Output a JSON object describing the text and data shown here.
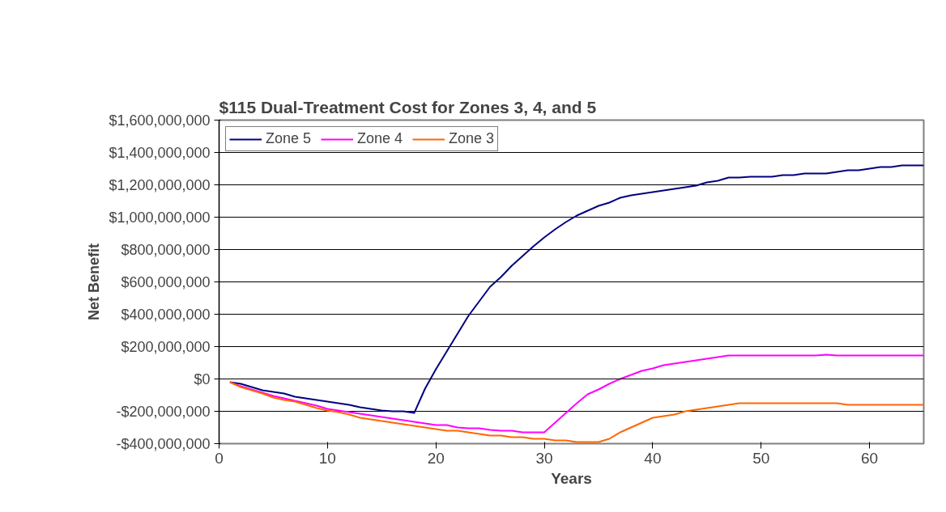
{
  "chart_data": {
    "type": "line",
    "title": "$115 Dual-Treatment Cost for Zones 3, 4, and 5",
    "xlabel": "Years",
    "ylabel": "Net Benefit",
    "x": [
      1,
      2,
      3,
      4,
      5,
      6,
      7,
      8,
      9,
      10,
      11,
      12,
      13,
      14,
      15,
      16,
      17,
      18,
      19,
      20,
      21,
      22,
      23,
      24,
      25,
      26,
      27,
      28,
      29,
      30,
      31,
      32,
      33,
      34,
      35,
      36,
      37,
      38,
      39,
      40,
      41,
      42,
      43,
      44,
      45,
      46,
      47,
      48,
      49,
      50,
      51,
      52,
      53,
      54,
      55,
      56,
      57,
      58,
      59,
      60,
      61,
      62,
      63,
      64,
      65
    ],
    "series": [
      {
        "name": "Zone 5",
        "color": "#000080",
        "values": [
          -20000000,
          -30000000,
          -50000000,
          -70000000,
          -80000000,
          -90000000,
          -110000000,
          -120000000,
          -130000000,
          -140000000,
          -150000000,
          -160000000,
          -175000000,
          -185000000,
          -195000000,
          -200000000,
          -200000000,
          -210000000,
          -60000000,
          60000000,
          170000000,
          280000000,
          390000000,
          480000000,
          570000000,
          630000000,
          700000000,
          760000000,
          820000000,
          875000000,
          925000000,
          970000000,
          1010000000,
          1040000000,
          1070000000,
          1090000000,
          1120000000,
          1135000000,
          1145000000,
          1155000000,
          1165000000,
          1175000000,
          1185000000,
          1195000000,
          1215000000,
          1225000000,
          1245000000,
          1245000000,
          1250000000,
          1250000000,
          1250000000,
          1260000000,
          1260000000,
          1270000000,
          1270000000,
          1270000000,
          1280000000,
          1290000000,
          1290000000,
          1300000000,
          1310000000,
          1310000000,
          1320000000,
          1320000000,
          1320000000
        ]
      },
      {
        "name": "Zone 4",
        "color": "#ff00ff",
        "values": [
          -20000000,
          -45000000,
          -65000000,
          -85000000,
          -105000000,
          -120000000,
          -135000000,
          -150000000,
          -165000000,
          -185000000,
          -195000000,
          -205000000,
          -215000000,
          -225000000,
          -235000000,
          -245000000,
          -255000000,
          -265000000,
          -275000000,
          -285000000,
          -285000000,
          -300000000,
          -305000000,
          -305000000,
          -315000000,
          -320000000,
          -320000000,
          -330000000,
          -330000000,
          -330000000,
          -270000000,
          -210000000,
          -150000000,
          -95000000,
          -65000000,
          -30000000,
          0,
          25000000,
          50000000,
          65000000,
          85000000,
          95000000,
          105000000,
          115000000,
          125000000,
          135000000,
          145000000,
          145000000,
          145000000,
          145000000,
          145000000,
          145000000,
          145000000,
          145000000,
          145000000,
          150000000,
          145000000,
          145000000,
          145000000,
          145000000,
          145000000,
          145000000,
          145000000,
          145000000,
          145000000
        ]
      },
      {
        "name": "Zone 3",
        "color": "#ff6600",
        "values": [
          -20000000,
          -50000000,
          -70000000,
          -90000000,
          -115000000,
          -130000000,
          -140000000,
          -160000000,
          -180000000,
          -195000000,
          -205000000,
          -220000000,
          -240000000,
          -250000000,
          -260000000,
          -270000000,
          -280000000,
          -290000000,
          -300000000,
          -310000000,
          -320000000,
          -320000000,
          -330000000,
          -340000000,
          -350000000,
          -350000000,
          -360000000,
          -360000000,
          -370000000,
          -370000000,
          -380000000,
          -380000000,
          -390000000,
          -390000000,
          -390000000,
          -370000000,
          -330000000,
          -300000000,
          -270000000,
          -240000000,
          -230000000,
          -220000000,
          -200000000,
          -190000000,
          -180000000,
          -170000000,
          -160000000,
          -150000000,
          -150000000,
          -150000000,
          -150000000,
          -150000000,
          -150000000,
          -150000000,
          -150000000,
          -150000000,
          -150000000,
          -160000000,
          -160000000,
          -160000000,
          -160000000,
          -160000000,
          -160000000,
          -160000000,
          -160000000
        ]
      }
    ],
    "xlim": [
      0,
      65
    ],
    "xticks": [
      0,
      10,
      20,
      30,
      40,
      50,
      60
    ],
    "ylim": [
      -400000000,
      1600000000
    ],
    "yticks": [
      {
        "value": -400000000,
        "label": "-$400,000,000"
      },
      {
        "value": -200000000,
        "label": "-$200,000,000"
      },
      {
        "value": 0,
        "label": "$0"
      },
      {
        "value": 200000000,
        "label": "$200,000,000"
      },
      {
        "value": 400000000,
        "label": "$400,000,000"
      },
      {
        "value": 600000000,
        "label": "$600,000,000"
      },
      {
        "value": 800000000,
        "label": "$800,000,000"
      },
      {
        "value": 1000000000,
        "label": "$1,000,000,000"
      },
      {
        "value": 1200000000,
        "label": "$1,200,000,000"
      },
      {
        "value": 1400000000,
        "label": "$1,400,000,000"
      },
      {
        "value": 1600000000,
        "label": "$1,600,000,000"
      }
    ],
    "grid": "y",
    "legend": "top left",
    "marker": "none",
    "line_style": "solid"
  }
}
